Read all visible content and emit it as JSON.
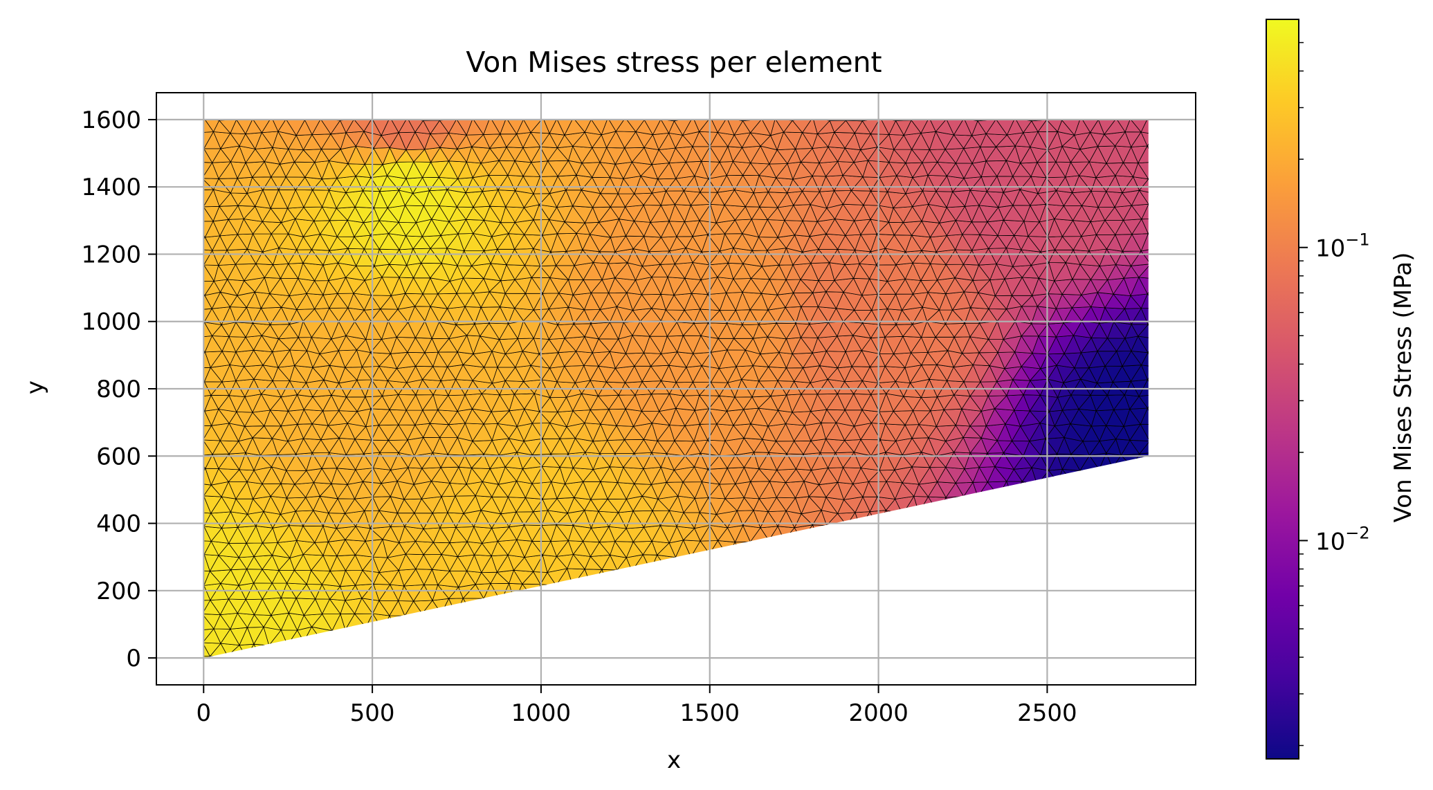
{
  "chart_data": {
    "type": "heatmap",
    "title": "Von Mises stress per element",
    "xlabel": "x",
    "ylabel": "y",
    "xlim": [
      -140,
      2940
    ],
    "ylim": [
      -80,
      1680
    ],
    "xticks": [
      0,
      500,
      1000,
      1500,
      2000,
      2500
    ],
    "yticks": [
      0,
      200,
      400,
      600,
      800,
      1000,
      1200,
      1400,
      1600
    ],
    "xtick_labels": [
      "0",
      "500",
      "1000",
      "1500",
      "2000",
      "2500"
    ],
    "ytick_labels": [
      "0",
      "200",
      "400",
      "600",
      "800",
      "1000",
      "1200",
      "1400",
      "1600"
    ],
    "grid": true,
    "mesh": {
      "type": "triangular",
      "element_edges_color": "#000000",
      "domain_polygon": [
        [
          0,
          0
        ],
        [
          2800,
          600
        ],
        [
          2800,
          1600
        ],
        [
          0,
          1600
        ]
      ]
    },
    "stress_field_samples": {
      "note_units": "MPa",
      "points": [
        {
          "x": 0,
          "y": 0,
          "value": 0.45
        },
        {
          "x": 600,
          "y": 1400,
          "value": 0.5
        },
        {
          "x": 600,
          "y": 1600,
          "value": 0.08
        },
        {
          "x": 500,
          "y": 800,
          "value": 0.22
        },
        {
          "x": 1000,
          "y": 300,
          "value": 0.3
        },
        {
          "x": 1500,
          "y": 1000,
          "value": 0.15
        },
        {
          "x": 2000,
          "y": 1000,
          "value": 0.09
        },
        {
          "x": 2500,
          "y": 1400,
          "value": 0.04
        },
        {
          "x": 2800,
          "y": 700,
          "value": 0.0018
        }
      ]
    },
    "colorbar": {
      "label": "Von Mises Stress (MPa)",
      "colormap": "plasma",
      "scale": "log",
      "range": [
        0.0018,
        0.6
      ],
      "major_ticks": [
        0.01,
        0.1
      ],
      "major_tick_labels": [
        {
          "base": "10",
          "exp": "−2"
        },
        {
          "base": "10",
          "exp": "−1"
        }
      ]
    },
    "colors": {
      "grid": "#b0b0b0",
      "axes": "#000000",
      "plasma_stops": [
        "#0d0887",
        "#46039f",
        "#7201a8",
        "#9c179e",
        "#bd3786",
        "#d8576b",
        "#ed7953",
        "#fb9f3a",
        "#fdca26",
        "#f0f921"
      ]
    }
  }
}
